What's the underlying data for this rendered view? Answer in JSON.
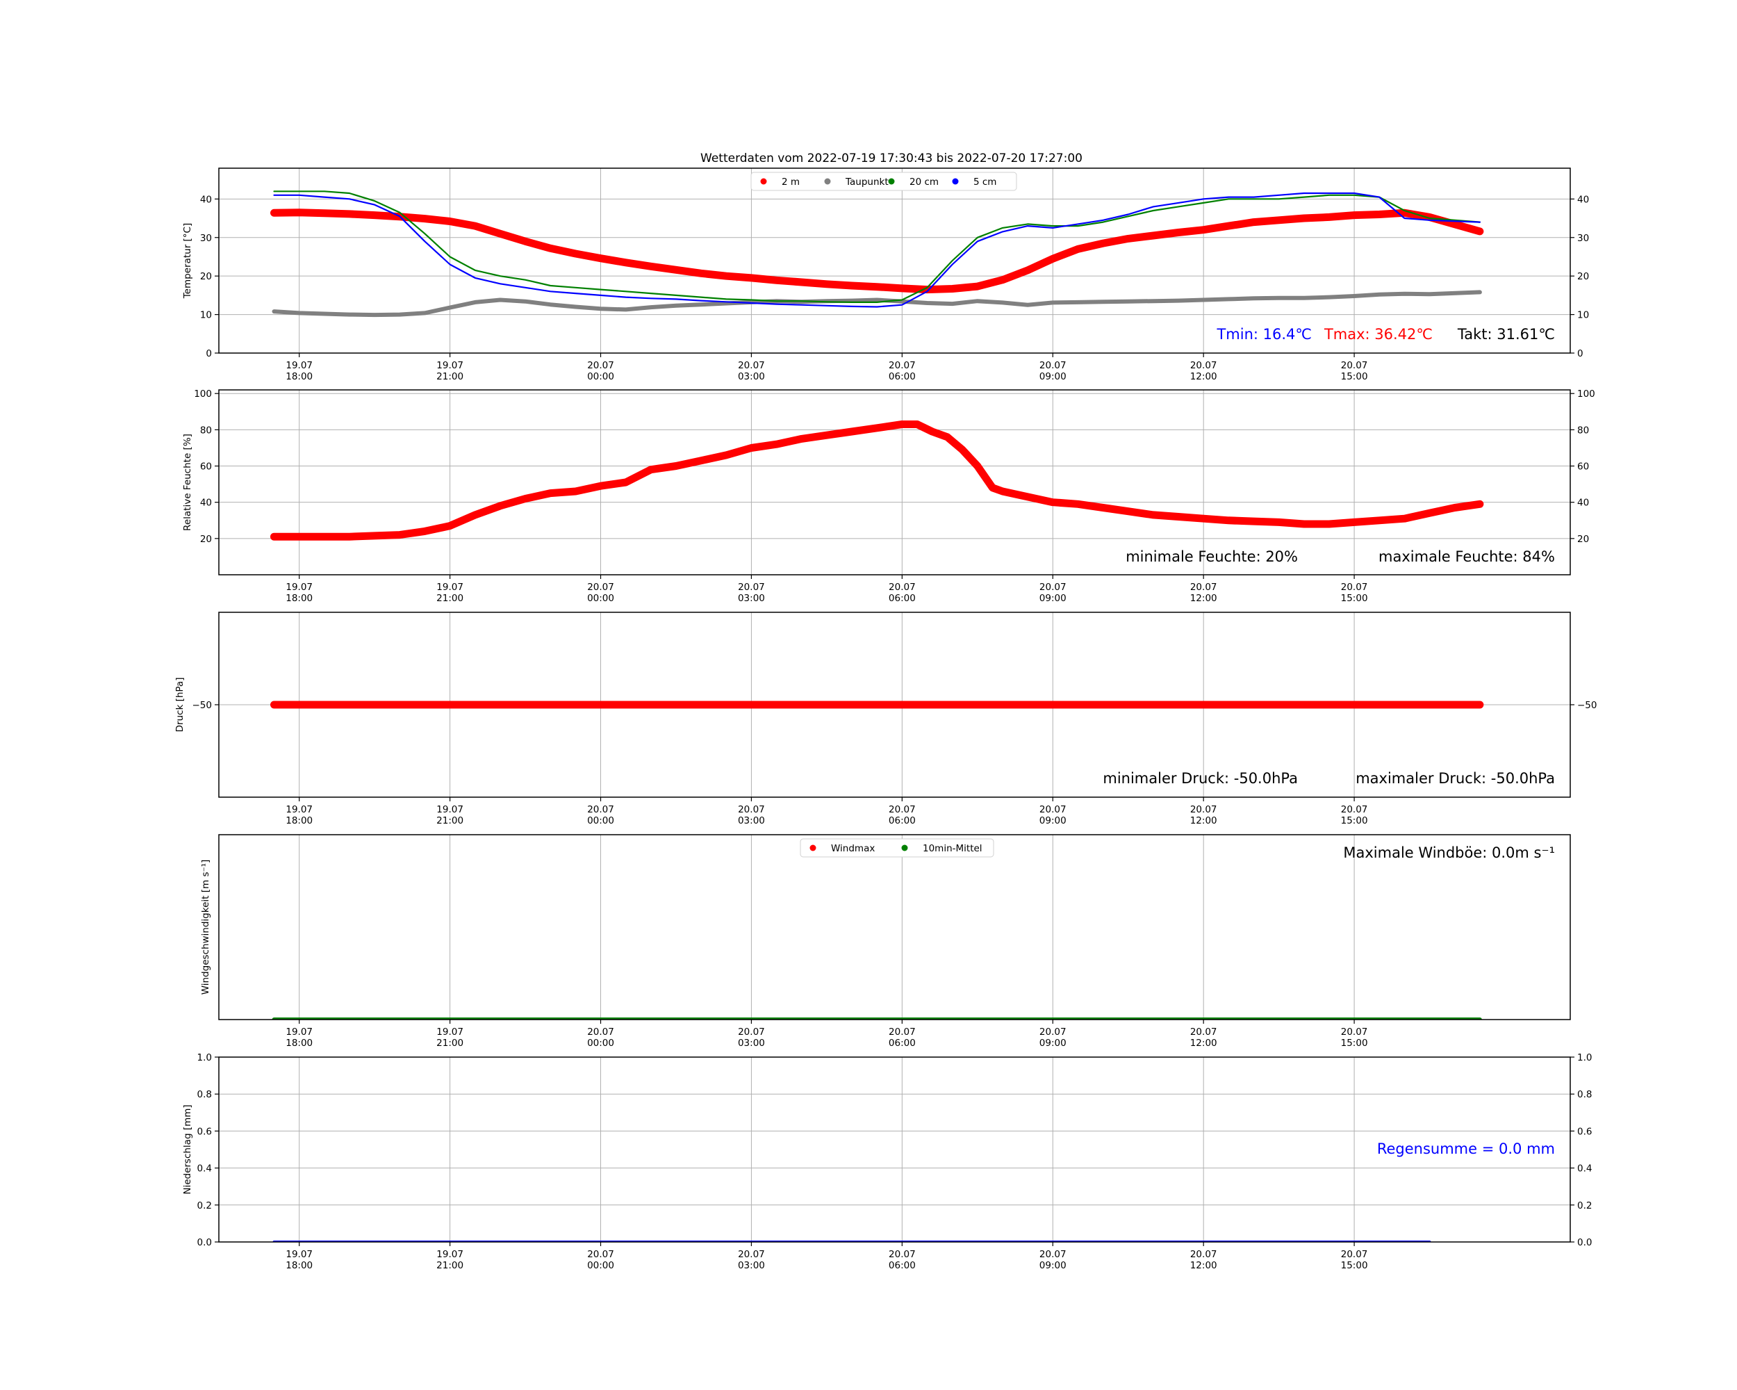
{
  "title": "Wetterdaten vom 2022-07-19 17:30:43 bis 2022-07-20 17:27:00",
  "x_ticks": [
    {
      "day": "19.07",
      "time": "18:00",
      "h": 0
    },
    {
      "day": "19.07",
      "time": "21:00",
      "h": 3
    },
    {
      "day": "20.07",
      "time": "00:00",
      "h": 6
    },
    {
      "day": "20.07",
      "time": "03:00",
      "h": 9
    },
    {
      "day": "20.07",
      "time": "06:00",
      "h": 12
    },
    {
      "day": "20.07",
      "time": "09:00",
      "h": 15
    },
    {
      "day": "20.07",
      "time": "12:00",
      "h": 18
    },
    {
      "day": "20.07",
      "time": "15:00",
      "h": 21
    }
  ],
  "colors": {
    "red": "#ff0000",
    "gray": "#808080",
    "green": "#008000",
    "blue": "#0000ff",
    "black": "#000000",
    "grid": "#b0b0b0"
  },
  "chart_data": [
    {
      "type": "scatter",
      "id": "temp",
      "ylabel": "Temperatur [°C]",
      "ylim": [
        0,
        48
      ],
      "yticks": [
        0,
        10,
        20,
        30,
        40
      ],
      "xlim_hours": [
        -0.5,
        23.5
      ],
      "grid": true,
      "legend": {
        "placement": "top-center",
        "entries": [
          {
            "label": "2 m",
            "color": "#ff0000"
          },
          {
            "label": "Taupunkt",
            "color": "#808080"
          },
          {
            "label": "20 cm",
            "color": "#008000"
          },
          {
            "label": "5 cm",
            "color": "#0000ff"
          }
        ]
      },
      "series": [
        {
          "name": "2 m",
          "color": "#ff0000",
          "style": "thick",
          "x": [
            -0.5,
            0,
            0.5,
            1,
            1.5,
            2,
            2.5,
            3,
            3.5,
            4,
            4.5,
            5,
            5.5,
            6,
            6.5,
            7,
            7.5,
            8,
            8.5,
            9,
            9.5,
            10,
            10.5,
            11,
            11.5,
            12,
            12.5,
            13,
            13.5,
            14,
            14.5,
            15,
            15.5,
            16,
            16.5,
            17,
            17.5,
            18,
            18.5,
            19,
            19.5,
            20,
            20.5,
            21,
            21.5,
            22,
            22.5,
            23.5
          ],
          "y": [
            36.4,
            36.5,
            36.3,
            36.1,
            35.8,
            35.4,
            34.9,
            34.2,
            33.0,
            31.0,
            29.0,
            27.2,
            25.8,
            24.6,
            23.5,
            22.5,
            21.6,
            20.7,
            20.0,
            19.5,
            18.9,
            18.4,
            17.9,
            17.5,
            17.2,
            16.8,
            16.5,
            16.7,
            17.3,
            19.0,
            21.5,
            24.5,
            27.0,
            28.5,
            29.7,
            30.5,
            31.3,
            32.0,
            33.0,
            34.0,
            34.5,
            35.0,
            35.3,
            35.8,
            36.0,
            36.4,
            35.3,
            31.6
          ]
        },
        {
          "name": "Taupunkt",
          "color": "#808080",
          "style": "medium",
          "x": [
            -0.5,
            0,
            0.5,
            1,
            1.5,
            2,
            2.5,
            3,
            3.5,
            4,
            4.5,
            5,
            5.5,
            6,
            6.5,
            7,
            7.5,
            8,
            8.5,
            9,
            9.5,
            10,
            10.5,
            11,
            11.5,
            12,
            12.5,
            13,
            13.5,
            14,
            14.5,
            15,
            15.5,
            16,
            16.5,
            17,
            17.5,
            18,
            18.5,
            19,
            19.5,
            20,
            20.5,
            21,
            21.5,
            22,
            22.5,
            23.5
          ],
          "y": [
            10.8,
            10.4,
            10.2,
            10.0,
            9.9,
            10.0,
            10.4,
            11.8,
            13.2,
            13.8,
            13.4,
            12.6,
            12.0,
            11.5,
            11.3,
            11.9,
            12.3,
            12.6,
            12.9,
            13.2,
            13.5,
            13.3,
            13.5,
            13.6,
            13.8,
            13.4,
            13.0,
            12.8,
            13.5,
            13.1,
            12.5,
            13.1,
            13.2,
            13.3,
            13.4,
            13.5,
            13.6,
            13.8,
            14.0,
            14.2,
            14.3,
            14.3,
            14.5,
            14.8,
            15.2,
            15.4,
            15.3,
            15.8
          ]
        },
        {
          "name": "20 cm",
          "color": "#008000",
          "style": "thin",
          "x": [
            -0.5,
            0,
            0.5,
            1,
            1.5,
            2,
            2.5,
            3,
            3.5,
            4,
            4.5,
            5,
            5.5,
            6,
            6.5,
            7,
            7.5,
            8,
            8.5,
            9,
            9.5,
            10,
            10.5,
            11,
            11.5,
            12,
            12.5,
            13,
            13.5,
            14,
            14.5,
            15,
            15.5,
            16,
            16.5,
            17,
            17.5,
            18,
            18.5,
            19,
            19.5,
            20,
            20.5,
            21,
            21.5,
            22,
            22.5,
            23.5
          ],
          "y": [
            42.0,
            42.0,
            42.0,
            41.5,
            39.5,
            36.5,
            31.0,
            25.0,
            21.5,
            20.0,
            19.0,
            17.5,
            17.0,
            16.5,
            16.0,
            15.5,
            15.0,
            14.5,
            14.0,
            13.8,
            13.5,
            13.5,
            13.3,
            13.2,
            13.2,
            13.8,
            17.0,
            24.0,
            30.0,
            32.5,
            33.5,
            33.0,
            33.0,
            34.0,
            35.5,
            37.0,
            38.0,
            39.0,
            40.0,
            40.0,
            40.0,
            40.5,
            41.0,
            41.0,
            40.5,
            37.0,
            35.0,
            34.0
          ]
        },
        {
          "name": "5 cm",
          "color": "#0000ff",
          "style": "thin",
          "x": [
            -0.5,
            0,
            0.5,
            1,
            1.5,
            2,
            2.5,
            3,
            3.5,
            4,
            4.5,
            5,
            5.5,
            6,
            6.5,
            7,
            7.5,
            8,
            8.5,
            9,
            9.5,
            10,
            10.5,
            11,
            11.5,
            12,
            12.5,
            13,
            13.5,
            14,
            14.5,
            15,
            15.5,
            16,
            16.5,
            17,
            17.5,
            18,
            18.5,
            19,
            19.5,
            20,
            20.5,
            21,
            21.5,
            22,
            22.5,
            23.5
          ],
          "y": [
            41.0,
            41.0,
            40.5,
            40.0,
            38.5,
            35.5,
            29.0,
            23.0,
            19.5,
            18.0,
            17.0,
            16.0,
            15.5,
            15.0,
            14.5,
            14.2,
            14.0,
            13.6,
            13.3,
            13.0,
            12.7,
            12.5,
            12.3,
            12.1,
            12.0,
            12.5,
            16.0,
            23.0,
            29.0,
            31.5,
            33.0,
            32.5,
            33.5,
            34.5,
            36.0,
            38.0,
            39.0,
            40.0,
            40.5,
            40.5,
            41.0,
            41.5,
            41.5,
            41.5,
            40.5,
            35.0,
            34.5,
            34.0
          ]
        }
      ],
      "annotations": [
        {
          "text": "Tmin: 16.4℃",
          "color": "#0000ff"
        },
        {
          "text": "Tmax: 36.42℃",
          "color": "#ff0000"
        },
        {
          "text": "Takt: 31.61℃",
          "color": "#000000"
        }
      ]
    },
    {
      "type": "scatter",
      "id": "humidity",
      "ylabel": "Relative Feuchte [%]",
      "ylim": [
        0,
        102
      ],
      "yticks": [
        20,
        40,
        60,
        80,
        100
      ],
      "xlim_hours": [
        -0.5,
        23.5
      ],
      "grid": true,
      "series": [
        {
          "name": "",
          "color": "#ff0000",
          "style": "thick",
          "x": [
            -0.5,
            0,
            0.5,
            1,
            1.5,
            2,
            2.5,
            3,
            3.5,
            4,
            4.5,
            5,
            5.5,
            6,
            6.5,
            7,
            7.5,
            8,
            8.5,
            9,
            9.5,
            10,
            10.5,
            11,
            11.5,
            12,
            12.3,
            12.6,
            12.9,
            13.2,
            13.5,
            13.8,
            14,
            14.5,
            15,
            15.5,
            16,
            16.5,
            17,
            17.5,
            18,
            18.5,
            19,
            19.5,
            20,
            20.5,
            21,
            21.5,
            22,
            22.5,
            23,
            23.5
          ],
          "y": [
            21,
            21,
            21,
            21,
            21.5,
            22,
            24,
            27,
            33,
            38,
            42,
            45,
            46,
            49,
            51,
            58,
            60,
            63,
            66,
            70,
            72,
            75,
            77,
            79,
            81,
            83,
            83,
            79,
            76,
            69,
            60,
            48,
            46,
            43,
            40,
            39,
            37,
            35,
            33,
            32,
            31,
            30,
            29.5,
            29,
            28,
            28,
            29,
            30,
            31,
            34,
            37,
            39
          ]
        }
      ],
      "annotations": [
        {
          "text": "minimale Feuchte: 20%",
          "color": "#000000"
        },
        {
          "text": "maximale Feuchte: 84%",
          "color": "#000000"
        }
      ]
    },
    {
      "type": "scatter",
      "id": "pressure",
      "ylabel": "Druck [hPa]",
      "ylim": [
        -60,
        -40
      ],
      "yticks": [
        -50
      ],
      "ytick_labels": [
        "−50"
      ],
      "xlim_hours": [
        -0.5,
        23.5
      ],
      "grid": true,
      "series": [
        {
          "name": "",
          "color": "#ff0000",
          "style": "thick",
          "x": [
            -0.5,
            23.5
          ],
          "y": [
            -50,
            -50
          ]
        }
      ],
      "annotations": [
        {
          "text": "minimaler Druck: -50.0hPa",
          "color": "#000000"
        },
        {
          "text": "maximaler Druck: -50.0hPa",
          "color": "#000000"
        }
      ]
    },
    {
      "type": "scatter",
      "id": "wind",
      "ylabel": "Windgeschwindigkeit [m s⁻¹]",
      "ylim": [
        0,
        1
      ],
      "yticks": [],
      "xlim_hours": [
        -0.5,
        23.5
      ],
      "grid": true,
      "legend": {
        "placement": "top-center",
        "entries": [
          {
            "label": "Windmax",
            "color": "#ff0000"
          },
          {
            "label": "10min-Mittel",
            "color": "#008000"
          }
        ]
      },
      "series": [
        {
          "name": "Windmax",
          "color": "#ff0000",
          "style": "thin",
          "x": [
            -0.5,
            23.5
          ],
          "y": [
            0,
            0
          ]
        },
        {
          "name": "10min-Mittel",
          "color": "#008000",
          "style": "medium",
          "x": [
            -0.5,
            23.5
          ],
          "y": [
            0,
            0
          ]
        }
      ],
      "annotations": [
        {
          "text": "Maximale Windböe:  0.0m s⁻¹",
          "color": "#000000"
        }
      ]
    },
    {
      "type": "line",
      "id": "rain",
      "ylabel": "Niederschlag [mm]",
      "ylim": [
        0,
        1
      ],
      "yticks": [
        0.0,
        0.2,
        0.4,
        0.6,
        0.8,
        1.0
      ],
      "ytick_labels": [
        "0.0",
        "0.2",
        "0.4",
        "0.6",
        "0.8",
        "1.0"
      ],
      "xlim_hours": [
        -0.5,
        22.5
      ],
      "grid": true,
      "series": [
        {
          "name": "",
          "color": "#0000ff",
          "style": "line",
          "x": [
            -0.5,
            22.5
          ],
          "y": [
            0,
            0
          ]
        }
      ],
      "annotations": [
        {
          "text": "Regensumme =  0.0 mm",
          "color": "#0000ff"
        }
      ]
    }
  ]
}
